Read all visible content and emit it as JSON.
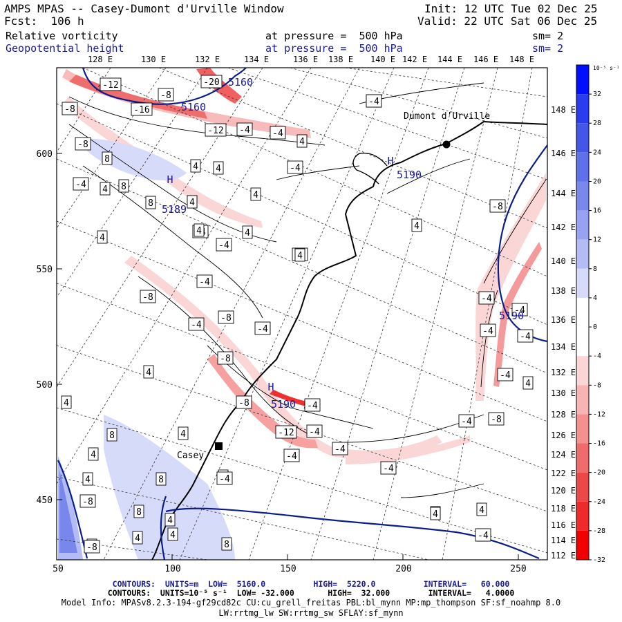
{
  "header": {
    "title": "AMPS MPAS -- Casey-Dumont d'Urville Window",
    "forecast": "Fcst:  106 h",
    "init": "Init: 12 UTC Tue 02 Dec 25",
    "valid": "Valid: 22 UTC Sat 06 Dec 25",
    "field1_name": "Relative vorticity",
    "field1_level": "at pressure =  500 hPa",
    "field1_sm": "sm= 2",
    "field2_name": "Geopotential height",
    "field2_level": "at pressure =  500 hPa",
    "field2_sm": "sm= 2"
  },
  "map": {
    "top_lon_labels": [
      "128 E",
      "130 E",
      "132 E",
      "134 E",
      "136 E",
      "138 E",
      "140 E",
      "142 E",
      "144 E",
      "146 E",
      "148 E"
    ],
    "right_lat_labels": [
      "148 E",
      "146 E",
      "144 E",
      "142 E",
      "140 E",
      "138 E",
      "136 E",
      "134 E",
      "132 E",
      "130 E",
      "128 E",
      "126 E",
      "124 E",
      "122 E",
      "120 E",
      "118 E",
      "116 E",
      "114 E",
      "112 E"
    ],
    "y_ticks": [
      "600",
      "550",
      "500",
      "450"
    ],
    "x_ticks": [
      "50",
      "100",
      "150",
      "200",
      "250"
    ],
    "place_labels": {
      "dumont": "Dumont d'Urville",
      "casey": "Casey"
    },
    "height_labels": [
      "5160",
      "5160",
      "5189",
      "5190",
      "5190",
      "5190"
    ],
    "high_label": "H",
    "vort_labels": [
      "-12",
      "-8",
      "-20",
      "-8",
      "-16",
      "-8",
      "-12",
      "-4",
      "-4",
      "-4",
      "-4",
      "8",
      "4",
      "8",
      "4",
      "8",
      "4",
      "-4",
      "4",
      "4",
      "-4",
      "-4",
      "4",
      "-4",
      "-8",
      "-4",
      "-4",
      "-8",
      "-4",
      "4",
      "-8",
      "4",
      "4",
      "-8",
      "-12",
      "-4",
      "-4",
      "-4",
      "-4",
      "-4",
      "-4",
      "-8",
      "-4",
      "4",
      "8",
      "4",
      "4",
      "8",
      "4",
      "8",
      "-8",
      "8",
      "4",
      "8",
      "4",
      "4",
      "4",
      "4",
      "-4",
      "-4",
      "-8",
      "-4",
      "-4",
      "-4",
      "-8",
      "4",
      "4",
      "4",
      "4",
      "4",
      "-4",
      "4",
      "4",
      "-4",
      "4",
      "4"
    ]
  },
  "colorbar": {
    "unit": "10⁻⁵ s⁻¹",
    "labels": [
      "32",
      "28",
      "24",
      "20",
      "16",
      "12",
      "8",
      "4",
      "0",
      "-4",
      "-8",
      "-12",
      "-16",
      "-20",
      "-24",
      "-28",
      "-32"
    ],
    "colors": [
      "#0010ff",
      "#2a3cf0",
      "#4456e8",
      "#5f70ea",
      "#7a88ee",
      "#97a3f2",
      "#b4bcf6",
      "#d7dbfa",
      "#ffffff",
      "#ffffff",
      "#fbd6d6",
      "#f8b3b3",
      "#f49090",
      "#f06c6c",
      "#ec4848",
      "#ee2a2a",
      "#f20000"
    ]
  },
  "footer": {
    "contours1": "CONTOURS:  UNITS=m  LOW=  5160.0          HIGH=  5220.0          INTERVAL=   60.000",
    "contours2": "CONTOURS:  UNITS=10⁻⁵ s⁻¹  LOW= -32.000       HIGH=  32.000        INTERVAL=   4.0000",
    "model1": "Model Info: MPASv8.2.3-194-gf29cd82c CU:cu_grell_freitas PBL:bl_mynn MP:mp_thompson SF:sf_noahmp 8.0",
    "model2": "LW:rrtmg_lw SW:rrtmg_sw SFLAY:sf_mynn"
  }
}
